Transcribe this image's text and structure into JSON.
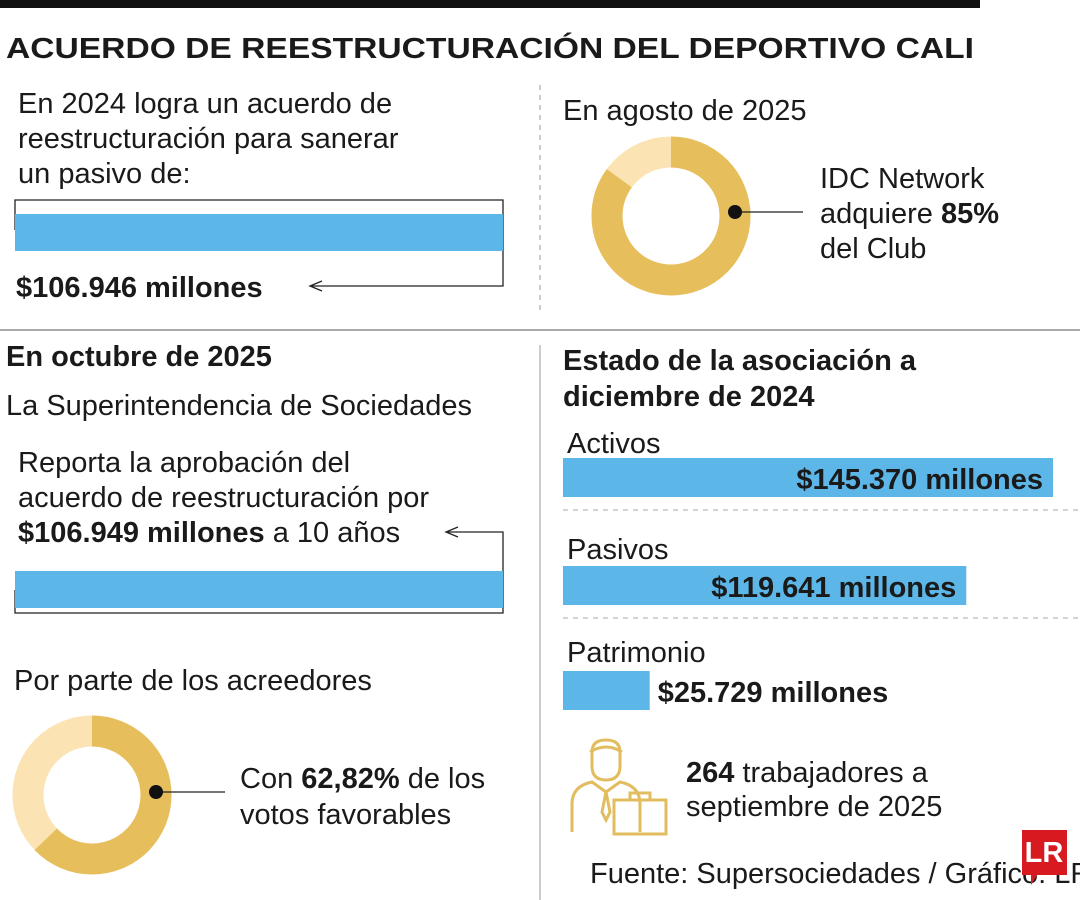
{
  "title": "ACUERDO DE REESTRUCTURACIÓN DEL DEPORTIVO CALI",
  "section1": {
    "lines": [
      "En 2024 logra un acuerdo de",
      "reestructuración para sanerar",
      "un pasivo de:"
    ],
    "value": 106946,
    "value_label": "$106.946 millones"
  },
  "section2": {
    "heading": "En agosto de 2025",
    "text_before": [
      "IDC Network",
      "adquiere"
    ],
    "value": 85,
    "value_label": "85%",
    "text_after": "del Club"
  },
  "section3": {
    "heading": "En octubre de 2025",
    "subheading": "La Superintendencia de Sociedades",
    "lines": [
      "Reporta la aprobación del",
      "acuerdo de reestructuración por"
    ],
    "value": 106949,
    "value_label": "$106.949 millones",
    "text_after": "a 10 años",
    "creditors": {
      "heading": "Por parte de los acreedores",
      "text_before": "Con",
      "value": 62.82,
      "value_label": "62,82%",
      "text_after": [
        "de los",
        "votos favorables"
      ]
    }
  },
  "section4": {
    "heading": [
      "Estado de la asociación a",
      "diciembre de 2024"
    ],
    "items": [
      {
        "name": "Activos",
        "value": 145370,
        "value_label": "$145.370 millones"
      },
      {
        "name": "Pasivos",
        "value": 119641,
        "value_label": "$119.641 millones"
      },
      {
        "name": "Patrimonio",
        "value": 25729,
        "value_label": "$25.729 millones"
      }
    ],
    "workers": {
      "value": 264,
      "text": [
        "trabajadores a",
        "septiembre de 2025"
      ]
    }
  },
  "source": "Fuente: Supersociedades / Gráfico: LR-AA",
  "logo": "LR"
}
